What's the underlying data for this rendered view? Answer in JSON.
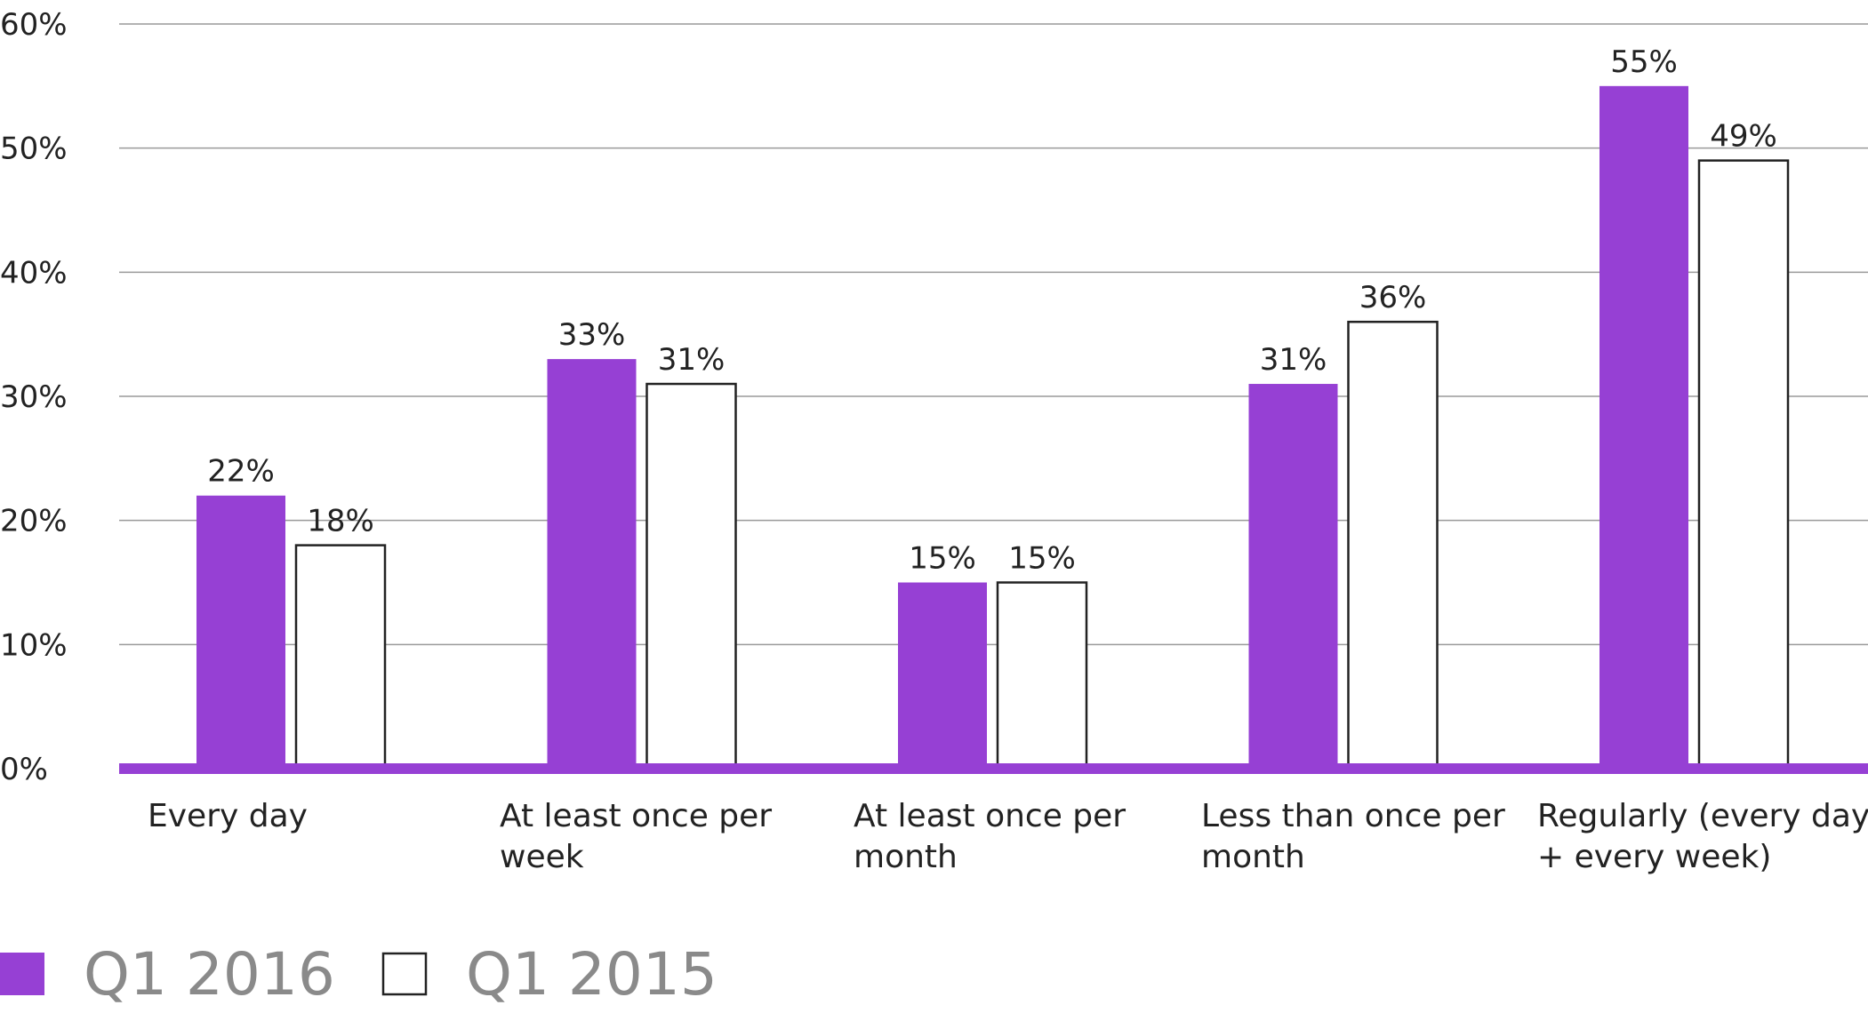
{
  "chart_data": {
    "type": "bar",
    "categories": [
      [
        "Every day"
      ],
      [
        "At least once per",
        "week"
      ],
      [
        "At least once per",
        "month"
      ],
      [
        "Less than once per",
        "month"
      ],
      [
        "Regularly (every day",
        "+ every week)"
      ]
    ],
    "series": [
      {
        "name": "Q1 2016",
        "values": [
          22,
          33,
          15,
          31,
          55
        ],
        "labels": [
          "22%",
          "33%",
          "15%",
          "31%",
          "55%"
        ],
        "color": "#9640d4"
      },
      {
        "name": "Q1 2015",
        "values": [
          18,
          31,
          15,
          36,
          49
        ],
        "labels": [
          "18%",
          "31%",
          "15%",
          "36%",
          "49%"
        ],
        "color": "#ffffff"
      }
    ],
    "y_ticks": [
      "0%",
      "10%",
      "20%",
      "30%",
      "40%",
      "50%",
      "60%"
    ],
    "ylim": [
      0,
      60
    ],
    "grid": true,
    "legend_position": "bottom-left",
    "title": "",
    "xlabel": "",
    "ylabel": ""
  }
}
